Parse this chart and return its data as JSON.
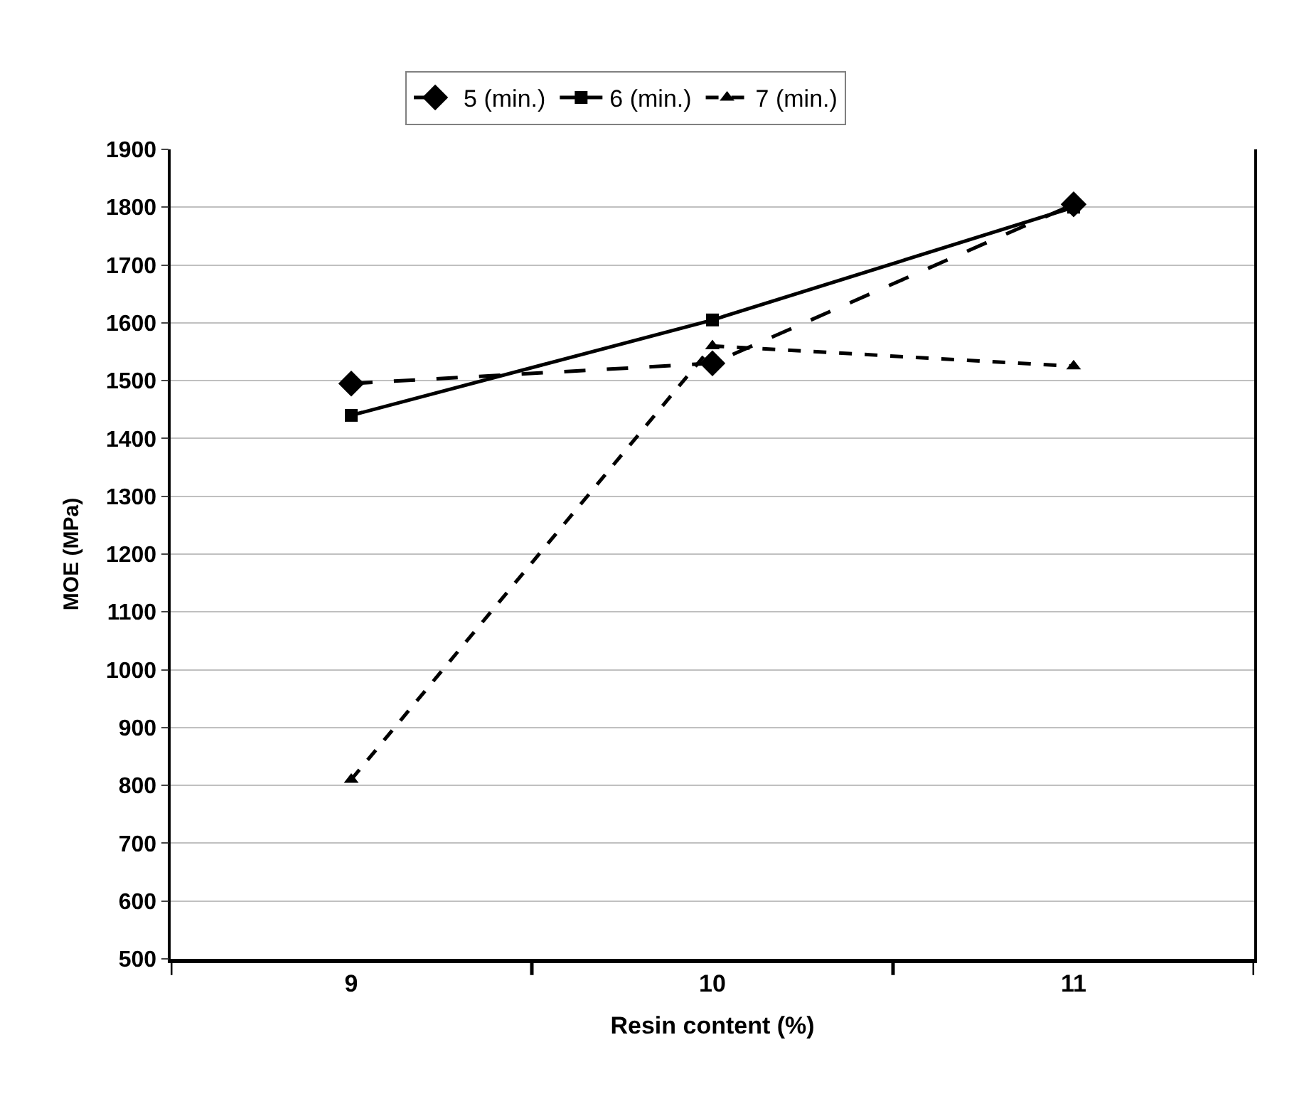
{
  "chart_data": {
    "type": "line",
    "xlabel": "Resin content (%)",
    "ylabel": "MOE (MPa)",
    "categories": [
      "9",
      "10",
      "11"
    ],
    "ylim": [
      500,
      1900
    ],
    "yticks": [
      500,
      600,
      700,
      800,
      900,
      1000,
      1100,
      1200,
      1300,
      1400,
      1500,
      1600,
      1700,
      1800,
      1900
    ],
    "grid": "y",
    "legend": "top",
    "series": [
      {
        "name": "5 (min.)",
        "color": "#000000",
        "marker": "diamond",
        "line_style": "dashed",
        "values": [
          1495,
          1530,
          1805
        ]
      },
      {
        "name": "6 (min.)",
        "color": "#000000",
        "marker": "square",
        "line_style": "solid",
        "values": [
          1440,
          1605,
          1800
        ]
      },
      {
        "name": "7 (min.)",
        "color": "#000000",
        "marker": "triangle",
        "line_style": "dotted",
        "values": [
          810,
          1560,
          1525
        ]
      }
    ]
  }
}
